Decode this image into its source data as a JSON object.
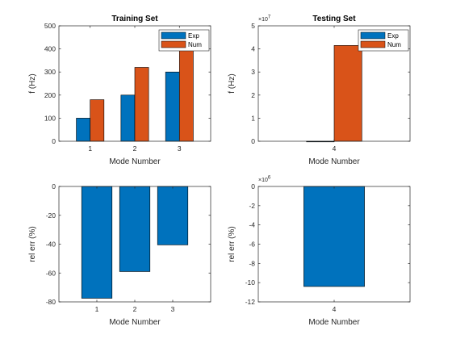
{
  "colors": {
    "exp": "#0072BD",
    "num": "#D95319",
    "axis": "#262626"
  },
  "chart_data": [
    {
      "type": "bar",
      "title": "Training Set",
      "xlabel": "Mode Number",
      "ylabel": "f (Hz)",
      "categories": [
        "1",
        "2",
        "3"
      ],
      "x": [
        1,
        2,
        3
      ],
      "xlim": [
        0.3,
        3.7
      ],
      "ylim": [
        0,
        500
      ],
      "yticks": [
        0,
        100,
        200,
        300,
        400,
        500
      ],
      "ytick_labels": [
        "0",
        "100",
        "200",
        "300",
        "400",
        "500"
      ],
      "yexponent": "",
      "grouped": true,
      "legend": {
        "position": "top-right",
        "entries": [
          "Exp",
          "Num"
        ]
      },
      "series": [
        {
          "name": "Exp",
          "values": [
            100,
            200,
            300
          ]
        },
        {
          "name": "Num",
          "values": [
            180,
            320,
            420
          ]
        }
      ]
    },
    {
      "type": "bar",
      "title": "Testing Set",
      "xlabel": "Mode Number",
      "ylabel": "f (Hz)",
      "categories": [
        "4"
      ],
      "x": [
        4
      ],
      "xlim": [
        3.15,
        4.85
      ],
      "ylim": [
        0,
        50000000
      ],
      "yticks": [
        0,
        10000000,
        20000000,
        30000000,
        40000000,
        50000000
      ],
      "ytick_labels": [
        "0",
        "1",
        "2",
        "3",
        "4",
        "5"
      ],
      "yexponent": "7",
      "grouped": true,
      "legend": {
        "position": "top-right",
        "entries": [
          "Exp",
          "Num"
        ]
      },
      "series": [
        {
          "name": "Exp",
          "values": [
            400
          ]
        },
        {
          "name": "Num",
          "values": [
            41500000
          ]
        }
      ]
    },
    {
      "type": "bar",
      "title": "",
      "xlabel": "Mode Number",
      "ylabel": "rel err (%)",
      "categories": [
        "1",
        "2",
        "3"
      ],
      "x": [
        1,
        2,
        3
      ],
      "xlim": [
        0,
        4
      ],
      "ylim": [
        -80,
        0
      ],
      "yticks": [
        -80,
        -60,
        -40,
        -20,
        0
      ],
      "ytick_labels": [
        "-80",
        "-60",
        "-40",
        "-20",
        "0"
      ],
      "yexponent": "",
      "grouped": false,
      "series": [
        {
          "values": [
            -77.5,
            -59,
            -40.5
          ]
        }
      ]
    },
    {
      "type": "bar",
      "title": "",
      "xlabel": "Mode Number",
      "ylabel": "rel err (%)",
      "categories": [
        "4"
      ],
      "x": [
        4
      ],
      "xlim": [
        3,
        5
      ],
      "ylim": [
        -12000000,
        0
      ],
      "yticks": [
        -12000000,
        -10000000,
        -8000000,
        -6000000,
        -4000000,
        -2000000,
        0
      ],
      "ytick_labels": [
        "-12",
        "-10",
        "-8",
        "-6",
        "-4",
        "-2",
        "0"
      ],
      "yexponent": "6",
      "grouped": false,
      "series": [
        {
          "values": [
            -10400000
          ]
        }
      ]
    }
  ]
}
